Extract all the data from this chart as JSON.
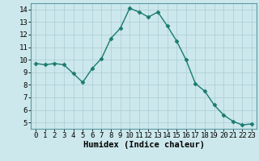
{
  "x": [
    0,
    1,
    2,
    3,
    4,
    5,
    6,
    7,
    8,
    9,
    10,
    11,
    12,
    13,
    14,
    15,
    16,
    17,
    18,
    19,
    20,
    21,
    22,
    23
  ],
  "y": [
    9.7,
    9.6,
    9.7,
    9.6,
    8.9,
    8.2,
    9.3,
    10.1,
    11.7,
    12.5,
    14.1,
    13.8,
    13.4,
    13.8,
    12.7,
    11.5,
    10.0,
    8.1,
    7.5,
    6.4,
    5.6,
    5.1,
    4.8,
    4.9
  ],
  "line_color": "#1a7a6e",
  "marker": "D",
  "marker_size": 2.5,
  "bg_color": "#cce8ec",
  "grid_color": "#b0d0d8",
  "xlabel": "Humidex (Indice chaleur)",
  "xlim": [
    -0.5,
    23.5
  ],
  "ylim": [
    4.5,
    14.5
  ],
  "yticks": [
    5,
    6,
    7,
    8,
    9,
    10,
    11,
    12,
    13,
    14
  ],
  "xticks": [
    0,
    1,
    2,
    3,
    4,
    5,
    6,
    7,
    8,
    9,
    10,
    11,
    12,
    13,
    14,
    15,
    16,
    17,
    18,
    19,
    20,
    21,
    22,
    23
  ],
  "tick_fontsize": 6.5,
  "xlabel_fontsize": 7.5
}
